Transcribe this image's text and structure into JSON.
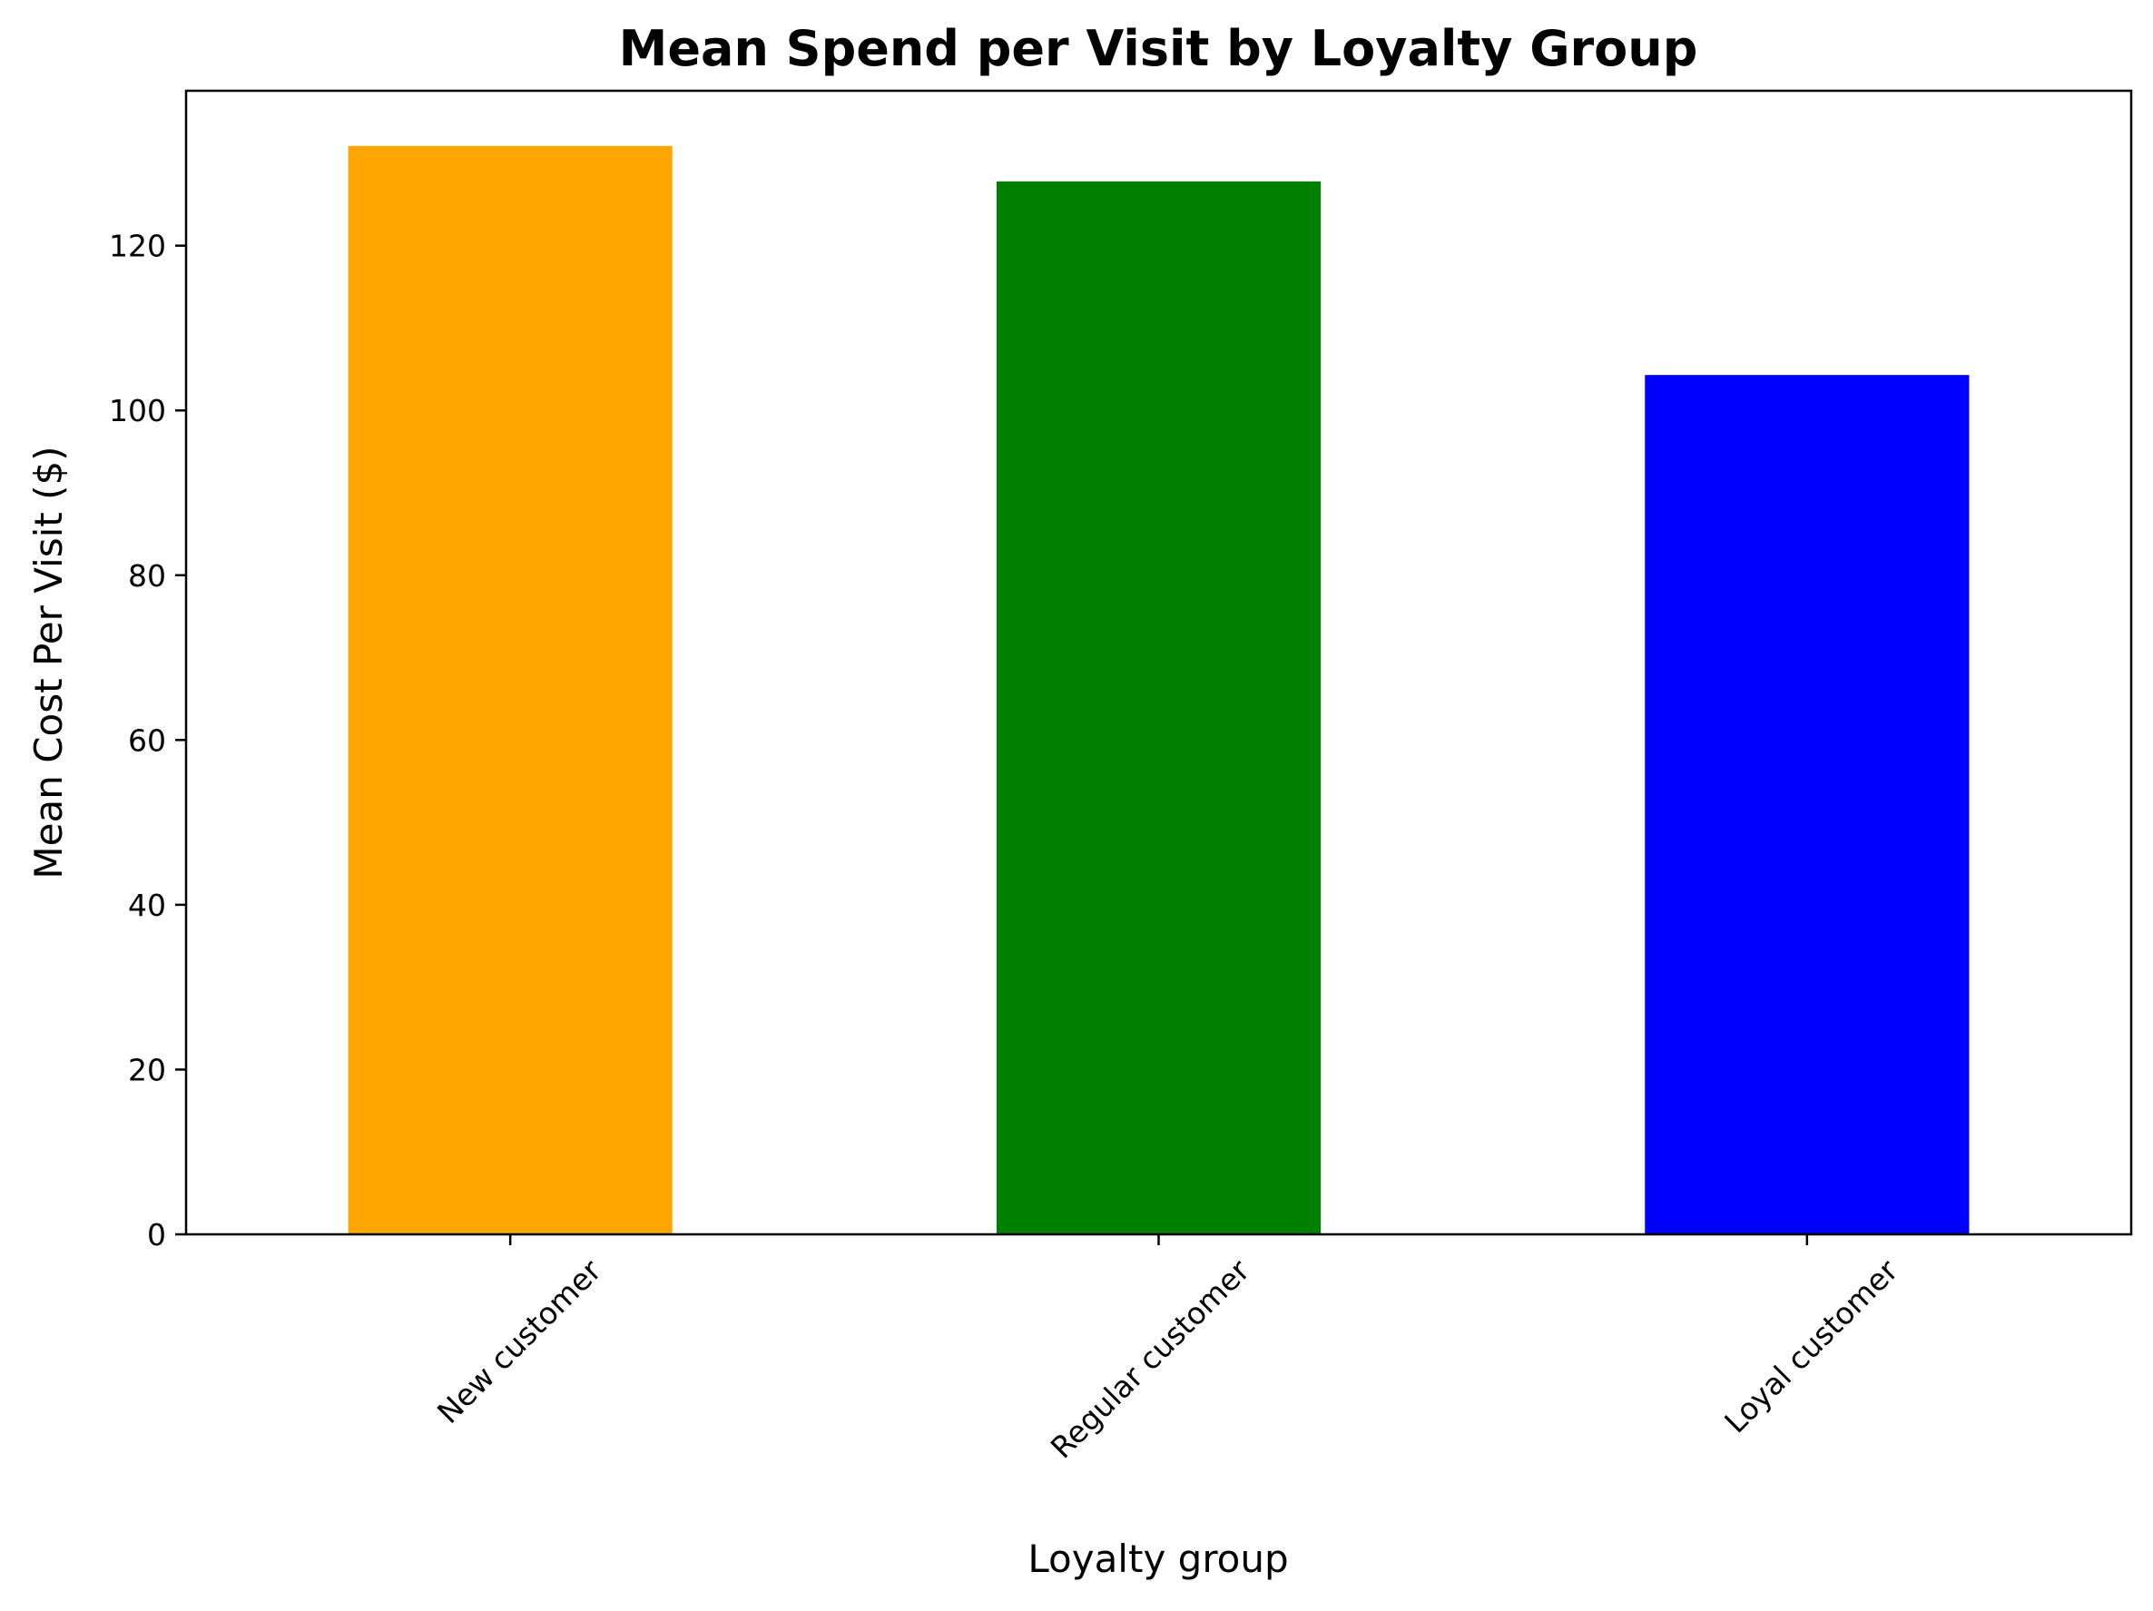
{
  "chart_data": {
    "type": "bar",
    "title": "Mean Spend per Visit by Loyalty Group",
    "xlabel": "Loyalty group",
    "ylabel": "Mean Cost Per Visit ($)",
    "categories": [
      "New customer",
      "Regular customer",
      "Loyal customer"
    ],
    "values": [
      132.1,
      127.8,
      104.3
    ],
    "colors": [
      "#FFA500",
      "#008000",
      "#0000FF"
    ],
    "ylim": [
      0,
      138.8
    ],
    "yticks": [
      0,
      20,
      40,
      60,
      80,
      100,
      120
    ],
    "ytick_labels": [
      "0",
      "20",
      "40",
      "60",
      "80",
      "100",
      "120"
    ],
    "xtick_rotation_deg": -45,
    "grid": false,
    "legend": "none"
  }
}
